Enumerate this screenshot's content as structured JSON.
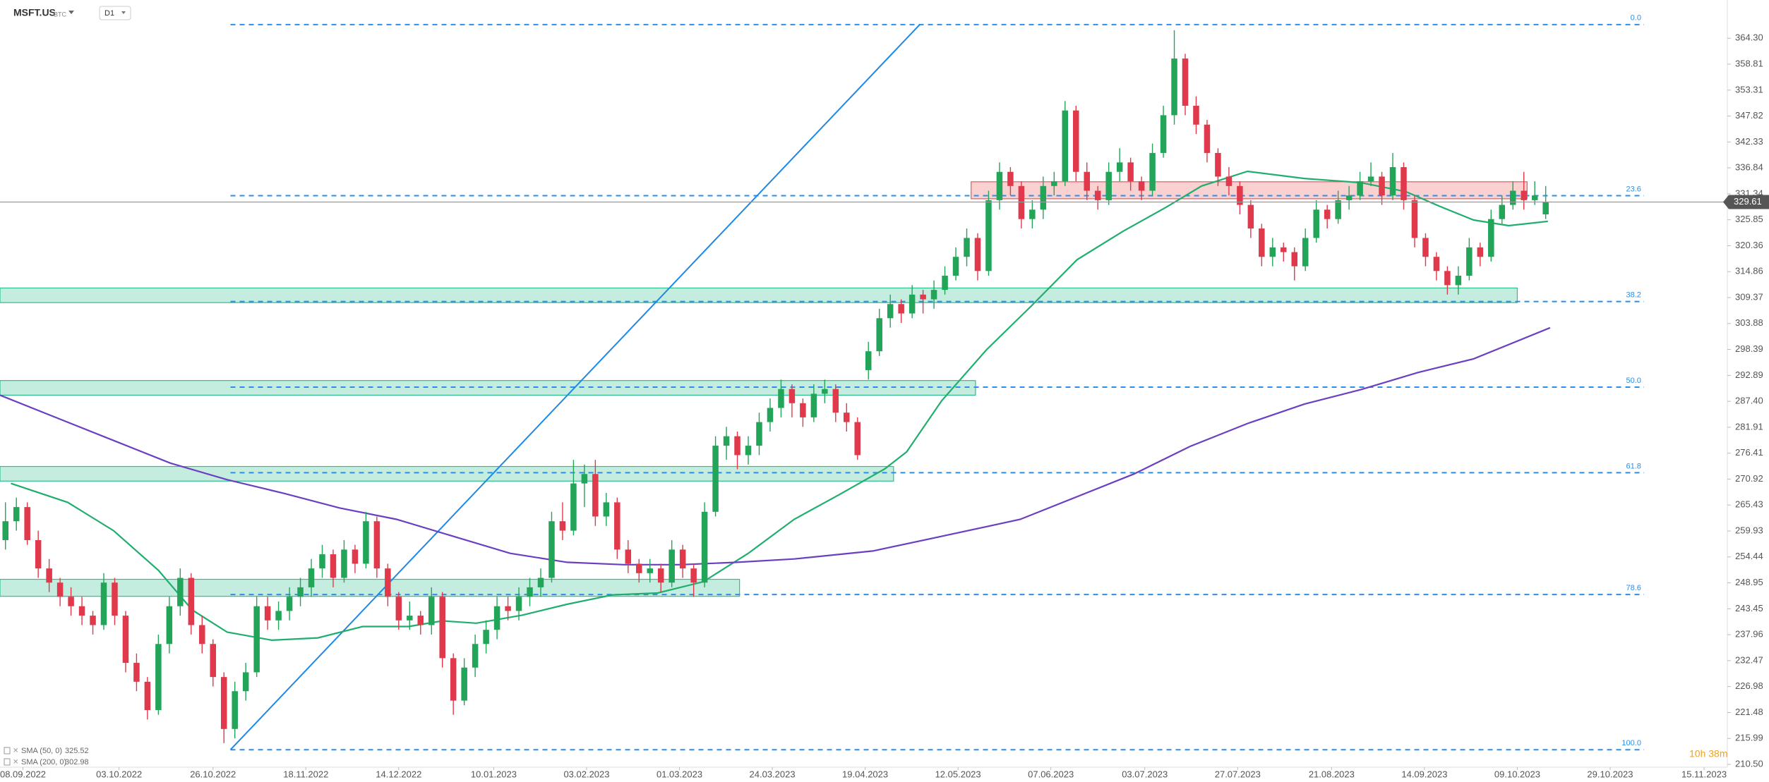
{
  "chart_data": {
    "type": "candlestick",
    "title": "MSFT.US",
    "subtitle": "BTC",
    "timeframe": "D1",
    "countdown": "10h 38m",
    "up_color": "#22a559",
    "down_color": "#e0394b",
    "xlim": [
      -0.5,
      157.5
    ],
    "ylim": [
      210.5,
      372.4
    ],
    "yticks": [
      {
        "value": 364.3,
        "label": "364.30"
      },
      358.81,
      353.31,
      347.82,
      342.33,
      336.84,
      331.34,
      325.85,
      320.36,
      314.86,
      309.37,
      303.88,
      298.39,
      292.89,
      {
        "value": 287.4,
        "label": "287.40"
      },
      281.91,
      276.41,
      270.92,
      265.43,
      259.93,
      254.44,
      248.95,
      243.45,
      237.96,
      232.47,
      226.98,
      221.48,
      215.99,
      {
        "value": 210.5,
        "label": "210.50"
      }
    ],
    "xticks": [
      {
        "value": 1.6,
        "label": "08.09.2022"
      },
      {
        "value": 10.4,
        "label": "03.10.2022"
      },
      {
        "value": 19.0,
        "label": "26.10.2022"
      },
      {
        "value": 27.5,
        "label": "18.11.2022"
      },
      {
        "value": 36.0,
        "label": "14.12.2022"
      },
      {
        "value": 44.7,
        "label": "10.01.2023"
      },
      {
        "value": 53.2,
        "label": "03.02.2023"
      },
      {
        "value": 61.7,
        "label": "01.03.2023"
      },
      {
        "value": 70.2,
        "label": "24.03.2023"
      },
      {
        "value": 78.7,
        "label": "19.04.2023"
      },
      {
        "value": 87.2,
        "label": "12.05.2023"
      },
      {
        "value": 95.7,
        "label": "07.06.2023"
      },
      {
        "value": 104.3,
        "label": "03.07.2023"
      },
      {
        "value": 112.8,
        "label": "27.07.2023"
      },
      {
        "value": 121.4,
        "label": "21.08.2023"
      },
      {
        "value": 129.9,
        "label": "14.09.2023"
      },
      {
        "value": 138.4,
        "label": "09.10.2023"
      },
      {
        "value": 146.9,
        "label": "29.10.2023"
      },
      {
        "value": 155.5,
        "label": "15.11.2023"
      }
    ],
    "candles": [
      [
        258,
        266,
        256,
        262
      ],
      [
        262,
        267,
        260,
        265
      ],
      [
        265,
        266,
        257,
        258
      ],
      [
        258,
        260,
        250,
        252
      ],
      [
        252,
        254,
        247,
        249
      ],
      [
        249,
        250,
        244,
        246
      ],
      [
        246,
        248,
        242,
        244
      ],
      [
        244,
        246,
        240,
        242
      ],
      [
        242,
        243,
        238,
        240
      ],
      [
        240,
        251,
        239,
        249
      ],
      [
        249,
        250,
        240,
        242
      ],
      [
        242,
        243,
        230,
        232
      ],
      [
        232,
        234,
        226,
        228
      ],
      [
        228,
        229,
        220,
        222
      ],
      [
        222,
        238,
        221,
        236
      ],
      [
        236,
        246,
        234,
        244
      ],
      [
        244,
        252,
        242,
        250
      ],
      [
        250,
        251,
        238,
        240
      ],
      [
        240,
        242,
        234,
        236
      ],
      [
        236,
        237,
        227,
        229
      ],
      [
        229,
        230,
        215,
        218
      ],
      [
        218,
        228,
        216,
        226
      ],
      [
        226,
        232,
        224,
        230
      ],
      [
        230,
        246,
        229,
        244
      ],
      [
        244,
        246,
        239,
        241
      ],
      [
        241,
        245,
        239,
        243
      ],
      [
        243,
        248,
        241,
        246
      ],
      [
        246,
        250,
        244,
        248
      ],
      [
        248,
        254,
        246,
        252
      ],
      [
        252,
        257,
        250,
        255
      ],
      [
        255,
        256,
        248,
        250
      ],
      [
        250,
        258,
        249,
        256
      ],
      [
        256,
        257,
        251,
        253
      ],
      [
        253,
        264,
        252,
        262
      ],
      [
        262,
        263,
        250,
        252
      ],
      [
        252,
        253,
        244,
        246
      ],
      [
        246,
        247,
        239,
        241
      ],
      [
        241,
        245,
        239,
        242
      ],
      [
        242,
        243,
        238,
        240
      ],
      [
        240,
        248,
        238,
        246
      ],
      [
        246,
        247,
        231,
        233
      ],
      [
        233,
        234,
        221,
        224
      ],
      [
        224,
        233,
        223,
        231
      ],
      [
        231,
        238,
        229,
        236
      ],
      [
        236,
        241,
        234,
        239
      ],
      [
        239,
        246,
        237,
        244
      ],
      [
        244,
        246,
        241,
        243
      ],
      [
        243,
        248,
        241,
        246
      ],
      [
        246,
        250,
        244,
        248
      ],
      [
        248,
        252,
        246,
        250
      ],
      [
        250,
        264,
        249,
        262
      ],
      [
        262,
        266,
        258,
        260
      ],
      [
        260,
        275,
        259,
        270
      ],
      [
        270,
        274,
        265,
        272
      ],
      [
        272,
        275,
        261,
        263
      ],
      [
        263,
        268,
        261,
        266
      ],
      [
        266,
        267,
        254,
        256
      ],
      [
        256,
        258,
        251,
        253
      ],
      [
        253,
        254,
        249,
        251
      ],
      [
        251,
        254,
        249,
        252
      ],
      [
        252,
        253,
        247,
        249
      ],
      [
        249,
        258,
        248,
        256
      ],
      [
        256,
        257,
        250,
        252
      ],
      [
        252,
        253,
        246,
        249
      ],
      [
        249,
        266,
        248,
        264
      ],
      [
        264,
        280,
        263,
        278
      ],
      [
        278,
        282,
        275,
        280
      ],
      [
        280,
        281,
        273,
        276
      ],
      [
        276,
        280,
        274,
        278
      ],
      [
        278,
        285,
        276,
        283
      ],
      [
        283,
        288,
        281,
        286
      ],
      [
        286,
        292,
        284,
        290
      ],
      [
        290,
        291,
        284,
        287
      ],
      [
        287,
        288,
        282,
        284
      ],
      [
        284,
        291,
        283,
        289
      ],
      [
        289,
        292,
        287,
        290
      ],
      [
        290,
        291,
        283,
        285
      ],
      [
        285,
        287,
        281,
        283
      ],
      [
        283,
        284,
        275,
        276
      ],
      [
        294,
        300,
        292,
        298
      ],
      [
        298,
        307,
        297,
        305
      ],
      [
        305,
        310,
        303,
        308
      ],
      [
        308,
        309,
        304,
        306
      ],
      [
        306,
        312,
        305,
        310
      ],
      [
        310,
        311,
        306,
        309
      ],
      [
        309,
        313,
        307,
        311
      ],
      [
        311,
        316,
        310,
        314
      ],
      [
        314,
        320,
        313,
        318
      ],
      [
        318,
        324,
        316,
        322
      ],
      [
        322,
        323,
        313,
        315
      ],
      [
        315,
        332,
        314,
        330
      ],
      [
        330,
        338,
        328,
        336
      ],
      [
        336,
        337,
        331,
        333
      ],
      [
        333,
        334,
        324,
        326
      ],
      [
        326,
        330,
        324,
        328
      ],
      [
        328,
        335,
        326,
        333
      ],
      [
        333,
        336,
        331,
        334
      ],
      [
        334,
        351,
        333,
        349
      ],
      [
        349,
        350,
        334,
        336
      ],
      [
        336,
        338,
        330,
        332
      ],
      [
        332,
        333,
        328,
        330
      ],
      [
        330,
        338,
        329,
        336
      ],
      [
        336,
        341,
        334,
        338
      ],
      [
        338,
        339,
        332,
        334
      ],
      [
        334,
        335,
        330,
        332
      ],
      [
        332,
        342,
        331,
        340
      ],
      [
        340,
        350,
        339,
        348
      ],
      [
        348,
        366,
        346,
        360
      ],
      [
        360,
        361,
        348,
        350
      ],
      [
        350,
        352,
        344,
        346
      ],
      [
        346,
        347,
        338,
        340
      ],
      [
        340,
        341,
        333,
        335
      ],
      [
        335,
        337,
        331,
        333
      ],
      [
        333,
        334,
        327,
        329
      ],
      [
        329,
        330,
        322,
        324
      ],
      [
        324,
        325,
        316,
        318
      ],
      [
        318,
        322,
        316,
        320
      ],
      [
        320,
        321,
        317,
        319
      ],
      [
        319,
        320,
        313,
        316
      ],
      [
        316,
        324,
        315,
        322
      ],
      [
        322,
        330,
        321,
        328
      ],
      [
        328,
        329,
        324,
        326
      ],
      [
        326,
        332,
        325,
        330
      ],
      [
        330,
        333,
        328,
        331
      ],
      [
        331,
        336,
        330,
        334
      ],
      [
        334,
        338,
        333,
        335
      ],
      [
        335,
        336,
        329,
        331
      ],
      [
        331,
        340,
        330,
        337
      ],
      [
        337,
        338,
        328,
        330
      ],
      [
        330,
        331,
        320,
        322
      ],
      [
        322,
        323,
        316,
        318
      ],
      [
        318,
        319,
        313,
        315
      ],
      [
        315,
        316,
        310,
        312
      ],
      [
        312,
        316,
        310,
        314
      ],
      [
        314,
        322,
        313,
        320
      ],
      [
        320,
        321,
        316,
        318
      ],
      [
        318,
        328,
        317,
        326
      ],
      [
        326,
        331,
        325,
        329
      ],
      [
        329,
        334,
        328,
        332
      ],
      [
        332,
        336,
        328,
        330
      ],
      [
        330,
        334,
        329,
        331
      ],
      [
        327,
        333,
        326,
        329.61
      ]
    ],
    "sma": [
      {
        "name": "SMA (50, 0)",
        "last_value": 325.52,
        "color": "#1fae6e",
        "x": [
          0.5,
          5.7,
          9.9,
          14,
          17.1,
          20.3,
          24.4,
          28.6,
          32.7,
          36.9,
          40,
          43.1,
          47.3,
          51.4,
          55.6,
          59.7,
          63.9,
          68,
          72.2,
          76.3,
          80.5,
          82.5,
          85.7,
          89.8,
          94,
          98.1,
          102.3,
          106.4,
          109.5,
          113.7,
          118.9,
          124.1,
          128.2,
          131.3,
          134.4,
          137.6,
          141.2
        ],
        "values": [
          270,
          266,
          260,
          251.6,
          243.2,
          238.5,
          236.8,
          237.3,
          239.7,
          239.7,
          240.9,
          240.4,
          242.1,
          244.4,
          246.4,
          246.8,
          249.2,
          255.2,
          262.4,
          267.6,
          273.1,
          276.7,
          287.5,
          298.3,
          307.8,
          317.4,
          323.4,
          328.7,
          333,
          336.1,
          334.6,
          333.7,
          331.8,
          328.7,
          325.8,
          324.6,
          325.52
        ]
      },
      {
        "name": "SMA (200, 0)",
        "last_value": 302.98,
        "color": "#6a3fc1",
        "x": [
          -0.5,
          4.7,
          9.9,
          15.1,
          20.3,
          25.5,
          30.6,
          35.8,
          41,
          46.2,
          51.4,
          56.6,
          61.8,
          67,
          72.2,
          79.4,
          85.7,
          92.9,
          98.1,
          103.3,
          108.5,
          113.7,
          118.9,
          124.1,
          129.3,
          134.4,
          141.4
        ],
        "values": [
          288.7,
          283.9,
          279.1,
          274.3,
          270.8,
          267.9,
          264.8,
          262.4,
          258.8,
          255.2,
          253.3,
          252.8,
          252.8,
          253.3,
          254,
          255.7,
          258.8,
          262.4,
          267.2,
          272,
          277.9,
          282.7,
          286.8,
          289.9,
          293.5,
          296.4,
          302.98
        ]
      }
    ],
    "fib_levels": [
      {
        "value": 0,
        "label": "0.0"
      },
      23.6,
      38.2,
      {
        "value": 50,
        "label": "50.0"
      },
      61.8,
      78.6,
      {
        "value": 100,
        "label": "100.0"
      }
    ],
    "fib_high": 367.2,
    "fib_low": 213.6,
    "fib_x": [
      20.6,
      150
    ],
    "fib_color": "#2e8de6",
    "trendline": {
      "x": [
        20.6,
        83.7
      ],
      "y": [
        213.6,
        367.2
      ],
      "color": "#1e88e5"
    },
    "zones": [
      {
        "x": [
          88.4,
          139.3
        ],
        "y": [
          330.3,
          333.9
        ],
        "color": "#e8595b"
      },
      {
        "x": [
          -0.5,
          138.4
        ],
        "y": [
          308.3,
          311.4
        ],
        "color": "#2fbf8b"
      },
      {
        "x": [
          -0.5,
          88.8
        ],
        "y": [
          288.7,
          291.8
        ],
        "color": "#2fbf8b"
      },
      {
        "x": [
          -0.5,
          81.3
        ],
        "y": [
          270.5,
          273.6
        ],
        "color": "#2fbf8b"
      },
      {
        "x": [
          -0.5,
          67.2
        ],
        "y": [
          246.1,
          249.7
        ],
        "color": "#2fbf8b"
      }
    ]
  }
}
